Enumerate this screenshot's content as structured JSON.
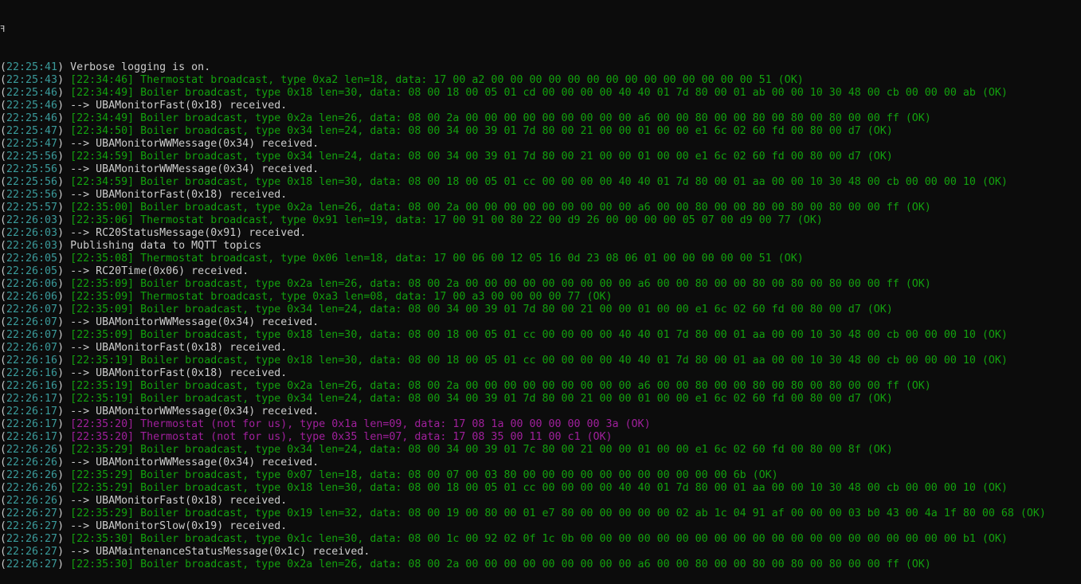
{
  "window": {
    "cursor_glyph": "ꟻ"
  },
  "colors": {
    "timestamp": "#3a9a9a",
    "info": "#cccccc",
    "telegram": "#13a10e",
    "not_for_us": "#a0209c",
    "background": "#0c0c0c"
  },
  "lines": [
    {
      "ts": "22:25:41",
      "kind": "info",
      "text": "Verbose logging is on."
    },
    {
      "ts": "22:25:43",
      "kind": "tele",
      "text": "[22:34:46] Thermostat broadcast, type 0xa2 len=18, data: 17 00 a2 00 00 00 00 00 00 00 00 00 00 00 00 00 00 51 (OK)"
    },
    {
      "ts": "22:25:46",
      "kind": "tele",
      "text": "[22:34:49] Boiler broadcast, type 0x18 len=30, data: 08 00 18 00 05 01 cd 00 00 00 00 40 40 01 7d 80 00 01 ab 00 00 10 30 48 00 cb 00 00 00 ab (OK)"
    },
    {
      "ts": "22:25:46",
      "kind": "info",
      "text": "--> UBAMonitorFast(0x18) received."
    },
    {
      "ts": "22:25:46",
      "kind": "tele",
      "text": "[22:34:49] Boiler broadcast, type 0x2a len=26, data: 08 00 2a 00 00 00 00 00 00 00 00 00 a6 00 00 80 00 00 80 00 80 00 80 00 00 ff (OK)"
    },
    {
      "ts": "22:25:47",
      "kind": "tele",
      "text": "[22:34:50] Boiler broadcast, type 0x34 len=24, data: 08 00 34 00 39 01 7d 80 00 21 00 00 01 00 00 e1 6c 02 60 fd 00 80 00 d7 (OK)"
    },
    {
      "ts": "22:25:47",
      "kind": "info",
      "text": "--> UBAMonitorWWMessage(0x34) received."
    },
    {
      "ts": "22:25:56",
      "kind": "tele",
      "text": "[22:34:59] Boiler broadcast, type 0x34 len=24, data: 08 00 34 00 39 01 7d 80 00 21 00 00 01 00 00 e1 6c 02 60 fd 00 80 00 d7 (OK)"
    },
    {
      "ts": "22:25:56",
      "kind": "info",
      "text": "--> UBAMonitorWWMessage(0x34) received."
    },
    {
      "ts": "22:25:56",
      "kind": "tele",
      "text": "[22:34:59] Boiler broadcast, type 0x18 len=30, data: 08 00 18 00 05 01 cc 00 00 00 00 40 40 01 7d 80 00 01 aa 00 00 10 30 48 00 cb 00 00 00 10 (OK)"
    },
    {
      "ts": "22:25:56",
      "kind": "info",
      "text": "--> UBAMonitorFast(0x18) received."
    },
    {
      "ts": "22:25:57",
      "kind": "tele",
      "text": "[22:35:00] Boiler broadcast, type 0x2a len=26, data: 08 00 2a 00 00 00 00 00 00 00 00 00 a6 00 00 80 00 00 80 00 80 00 80 00 00 ff (OK)"
    },
    {
      "ts": "22:26:03",
      "kind": "tele",
      "text": "[22:35:06] Thermostat broadcast, type 0x91 len=19, data: 17 00 91 00 80 22 00 d9 26 00 00 00 00 05 07 00 d9 00 77 (OK)"
    },
    {
      "ts": "22:26:03",
      "kind": "info",
      "text": "--> RC20StatusMessage(0x91) received."
    },
    {
      "ts": "22:26:03",
      "kind": "info",
      "text": "Publishing data to MQTT topics"
    },
    {
      "ts": "22:26:05",
      "kind": "tele",
      "text": "[22:35:08] Thermostat broadcast, type 0x06 len=18, data: 17 00 06 00 12 05 16 0d 23 08 06 01 00 00 00 00 00 51 (OK)"
    },
    {
      "ts": "22:26:05",
      "kind": "info",
      "text": "--> RC20Time(0x06) received."
    },
    {
      "ts": "22:26:06",
      "kind": "tele",
      "text": "[22:35:09] Boiler broadcast, type 0x2a len=26, data: 08 00 2a 00 00 00 00 00 00 00 00 00 a6 00 00 80 00 00 80 00 80 00 80 00 00 ff (OK)"
    },
    {
      "ts": "22:26:06",
      "kind": "tele",
      "text": "[22:35:09] Thermostat broadcast, type 0xa3 len=08, data: 17 00 a3 00 00 00 00 77 (OK)"
    },
    {
      "ts": "22:26:07",
      "kind": "tele",
      "text": "[22:35:09] Boiler broadcast, type 0x34 len=24, data: 08 00 34 00 39 01 7d 80 00 21 00 00 01 00 00 e1 6c 02 60 fd 00 80 00 d7 (OK)"
    },
    {
      "ts": "22:26:07",
      "kind": "info",
      "text": "--> UBAMonitorWWMessage(0x34) received."
    },
    {
      "ts": "22:26:07",
      "kind": "tele",
      "text": "[22:35:09] Boiler broadcast, type 0x18 len=30, data: 08 00 18 00 05 01 cc 00 00 00 00 40 40 01 7d 80 00 01 aa 00 00 10 30 48 00 cb 00 00 00 10 (OK)"
    },
    {
      "ts": "22:26:07",
      "kind": "info",
      "text": "--> UBAMonitorFast(0x18) received."
    },
    {
      "ts": "22:26:16",
      "kind": "tele",
      "text": "[22:35:19] Boiler broadcast, type 0x18 len=30, data: 08 00 18 00 05 01 cc 00 00 00 00 40 40 01 7d 80 00 01 aa 00 00 10 30 48 00 cb 00 00 00 10 (OK)"
    },
    {
      "ts": "22:26:16",
      "kind": "info",
      "text": "--> UBAMonitorFast(0x18) received."
    },
    {
      "ts": "22:26:16",
      "kind": "tele",
      "text": "[22:35:19] Boiler broadcast, type 0x2a len=26, data: 08 00 2a 00 00 00 00 00 00 00 00 00 a6 00 00 80 00 00 80 00 80 00 80 00 00 ff (OK)"
    },
    {
      "ts": "22:26:17",
      "kind": "tele",
      "text": "[22:35:19] Boiler broadcast, type 0x34 len=24, data: 08 00 34 00 39 01 7d 80 00 21 00 00 01 00 00 e1 6c 02 60 fd 00 80 00 d7 (OK)"
    },
    {
      "ts": "22:26:17",
      "kind": "info",
      "text": "--> UBAMonitorWWMessage(0x34) received."
    },
    {
      "ts": "22:26:17",
      "kind": "other",
      "text": "[22:35:20] Thermostat (not for us), type 0x1a len=09, data: 17 08 1a 00 00 00 00 00 3a (OK)"
    },
    {
      "ts": "22:26:17",
      "kind": "other",
      "text": "[22:35:20] Thermostat (not for us), type 0x35 len=07, data: 17 08 35 00 11 00 c1 (OK)"
    },
    {
      "ts": "22:26:26",
      "kind": "tele",
      "text": "[22:35:29] Boiler broadcast, type 0x34 len=24, data: 08 00 34 00 39 01 7c 80 00 21 00 00 01 00 00 e1 6c 02 60 fd 00 80 00 8f (OK)"
    },
    {
      "ts": "22:26:26",
      "kind": "info",
      "text": "--> UBAMonitorWWMessage(0x34) received."
    },
    {
      "ts": "22:26:26",
      "kind": "tele",
      "text": "[22:35:29] Boiler broadcast, type 0x07 len=18, data: 08 00 07 00 03 80 00 00 00 00 00 00 00 00 00 00 00 6b (OK)"
    },
    {
      "ts": "22:26:26",
      "kind": "tele",
      "text": "[22:35:29] Boiler broadcast, type 0x18 len=30, data: 08 00 18 00 05 01 cc 00 00 00 00 40 40 01 7d 80 00 01 aa 00 00 10 30 48 00 cb 00 00 00 10 (OK)"
    },
    {
      "ts": "22:26:26",
      "kind": "info",
      "text": "--> UBAMonitorFast(0x18) received."
    },
    {
      "ts": "22:26:27",
      "kind": "tele",
      "text": "[22:35:29] Boiler broadcast, type 0x19 len=32, data: 08 00 19 00 80 00 01 e7 80 00 00 00 00 00 02 ab 1c 04 91 af 00 00 00 03 b0 43 00 4a 1f 80 00 68 (OK)"
    },
    {
      "ts": "22:26:27",
      "kind": "info",
      "text": "--> UBAMonitorSlow(0x19) received."
    },
    {
      "ts": "22:26:27",
      "kind": "tele",
      "text": "[22:35:30] Boiler broadcast, type 0x1c len=30, data: 08 00 1c 00 92 02 0f 1c 0b 00 00 00 00 00 00 00 00 00 00 00 00 00 00 00 00 00 00 00 00 b1 (OK)"
    },
    {
      "ts": "22:26:27",
      "kind": "info",
      "text": "--> UBAMaintenanceStatusMessage(0x1c) received."
    },
    {
      "ts": "22:26:27",
      "kind": "tele",
      "text": "[22:35:30] Boiler broadcast, type 0x2a len=26, data: 08 00 2a 00 00 00 00 00 00 00 00 00 a6 00 00 80 00 00 80 00 80 00 80 00 00 ff (OK)"
    }
  ]
}
